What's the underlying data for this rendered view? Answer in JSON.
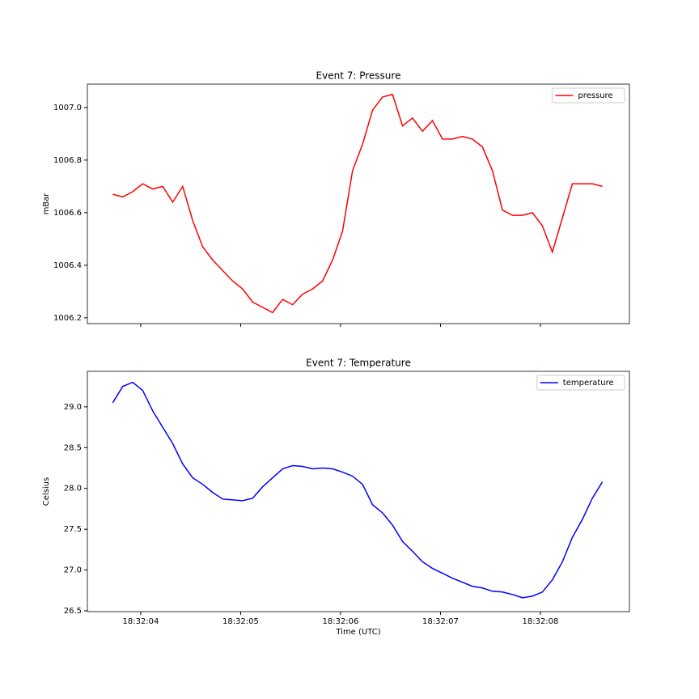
{
  "chart_data": [
    {
      "type": "line",
      "title": "Event 7: Pressure",
      "ylabel": "mBar",
      "legend": "upper right",
      "grid": false,
      "xlim": [
        3.466,
        8.891
      ],
      "xticks": [
        4,
        5,
        6,
        7,
        8
      ],
      "ylim": [
        1006.178,
        1007.089
      ],
      "yticks": [
        1006.2,
        1006.4,
        1006.6,
        1006.8,
        {
          "value": 1007.0,
          "label": "1007.0"
        }
      ],
      "x": [
        3.72,
        3.82,
        3.92,
        4.02,
        4.12,
        4.22,
        4.32,
        4.42,
        4.52,
        4.62,
        4.72,
        4.82,
        4.92,
        5.02,
        5.12,
        5.22,
        5.32,
        5.42,
        5.52,
        5.62,
        5.72,
        5.82,
        5.92,
        6.02,
        6.12,
        6.22,
        6.32,
        6.42,
        6.52,
        6.62,
        6.72,
        6.82,
        6.92,
        7.02,
        7.12,
        7.22,
        7.32,
        7.42,
        7.52,
        7.62,
        7.72,
        7.82,
        7.92,
        8.02,
        8.12,
        8.22,
        8.32,
        8.42,
        8.52,
        8.62
      ],
      "series": [
        {
          "name": "pressure",
          "color": "#ff0000",
          "values": [
            1006.67,
            1006.66,
            1006.68,
            1006.71,
            1006.69,
            1006.7,
            1006.64,
            1006.7,
            1006.57,
            1006.47,
            1006.42,
            1006.38,
            1006.34,
            1006.31,
            1006.26,
            1006.24,
            1006.22,
            1006.27,
            1006.25,
            1006.29,
            1006.31,
            1006.34,
            1006.42,
            1006.53,
            1006.76,
            1006.86,
            1006.99,
            1007.04,
            1007.05,
            1006.93,
            1006.96,
            1006.91,
            1006.95,
            1006.88,
            1006.88,
            1006.89,
            1006.88,
            1006.85,
            1006.76,
            1006.61,
            1006.59,
            1006.59,
            1006.6,
            1006.55,
            1006.45,
            1006.58,
            1006.71,
            1006.71,
            1006.71,
            1006.7
          ]
        }
      ]
    },
    {
      "type": "line",
      "title": "Event 7: Temperature",
      "ylabel": "Celsius",
      "xlabel": "Time (UTC)",
      "legend": "upper right",
      "grid": false,
      "xlim": [
        3.466,
        8.891
      ],
      "xticks": [
        {
          "value": 4,
          "label": "18:32:04"
        },
        {
          "value": 5,
          "label": "18:32:05"
        },
        {
          "value": 6,
          "label": "18:32:06"
        },
        {
          "value": 7,
          "label": "18:32:07"
        },
        {
          "value": 8,
          "label": "18:32:08"
        }
      ],
      "ylim": [
        26.49,
        29.435
      ],
      "yticks": [
        26.5,
        {
          "value": 27.0,
          "label": "27.0"
        },
        27.5,
        {
          "value": 28.0,
          "label": "28.0"
        },
        28.5,
        {
          "value": 29.0,
          "label": "29.0"
        }
      ],
      "x": [
        3.72,
        3.82,
        3.92,
        4.02,
        4.12,
        4.22,
        4.32,
        4.42,
        4.52,
        4.62,
        4.72,
        4.82,
        4.92,
        5.02,
        5.12,
        5.22,
        5.32,
        5.42,
        5.52,
        5.62,
        5.72,
        5.82,
        5.92,
        6.02,
        6.12,
        6.22,
        6.32,
        6.42,
        6.52,
        6.62,
        6.72,
        6.82,
        6.92,
        7.02,
        7.12,
        7.22,
        7.32,
        7.42,
        7.52,
        7.62,
        7.72,
        7.82,
        7.92,
        8.02,
        8.12,
        8.22,
        8.32,
        8.42,
        8.52,
        8.62
      ],
      "series": [
        {
          "name": "temperature",
          "color": "#0000ff",
          "values": [
            29.05,
            29.25,
            29.3,
            29.2,
            28.95,
            28.75,
            28.55,
            28.3,
            28.13,
            28.05,
            27.95,
            27.87,
            27.86,
            27.85,
            27.88,
            28.02,
            28.13,
            28.24,
            28.28,
            28.27,
            28.24,
            28.25,
            28.24,
            28.2,
            28.15,
            28.05,
            27.8,
            27.7,
            27.55,
            27.35,
            27.23,
            27.1,
            27.02,
            26.96,
            26.9,
            26.85,
            26.8,
            26.78,
            26.74,
            26.73,
            26.7,
            26.66,
            26.68,
            26.73,
            26.88,
            27.1,
            27.4,
            27.62,
            27.88,
            28.08
          ]
        }
      ]
    }
  ]
}
